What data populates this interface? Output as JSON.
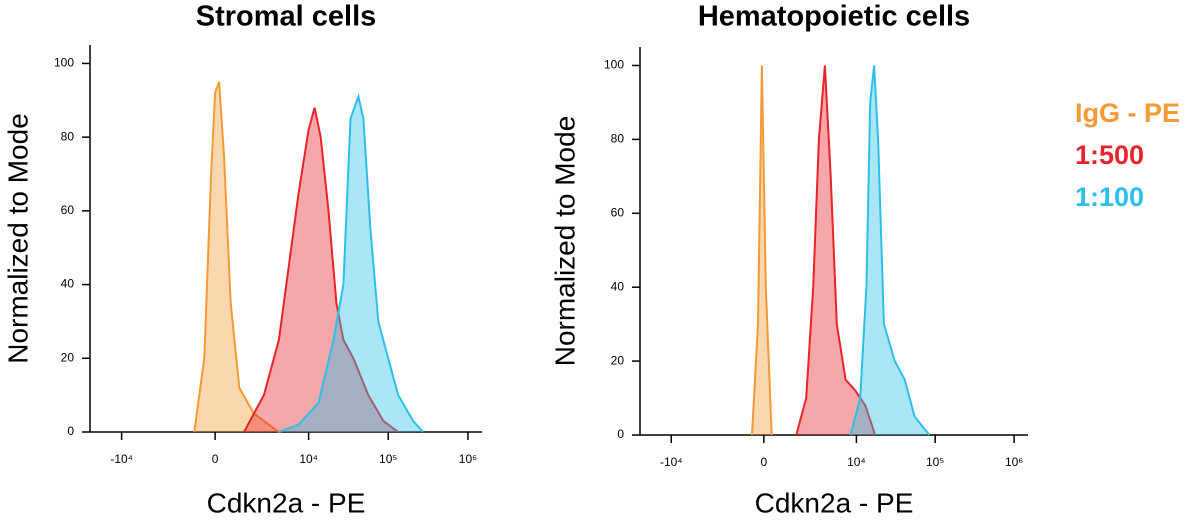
{
  "chart_data": [
    {
      "type": "area",
      "title": "Stromal cells",
      "x_label": "Cdkn2a - PE",
      "y_label": "Normalized to Mode",
      "xscale": "biexponential",
      "xlim": [
        -25000,
        1500000
      ],
      "xticks": [
        {
          "value": -10000,
          "label": "-10⁴"
        },
        0,
        {
          "value": 10000,
          "label": "10⁴"
        },
        {
          "value": 100000,
          "label": "10⁵"
        },
        {
          "value": 1000000,
          "label": "10⁶"
        }
      ],
      "ylim": [
        0,
        105
      ],
      "yticks": [
        0,
        20,
        40,
        60,
        80,
        100
      ],
      "series": [
        {
          "color": "#f39a36",
          "x": [
            -860,
            -430,
            -155,
            0,
            155,
            350,
            630,
            1020,
            1850,
            4150
          ],
          "values": [
            0,
            20,
            70,
            92,
            95,
            75,
            35,
            12,
            5,
            0
          ]
        },
        {
          "color": "#e8232a",
          "x": [
            1260,
            2600,
            4150,
            5590,
            7490,
            10000,
            11900,
            14200,
            17800,
            22400,
            27400,
            36600,
            56300,
            86700,
            133500
          ],
          "values": [
            0,
            10,
            25,
            45,
            65,
            82,
            88,
            80,
            60,
            35,
            25,
            20,
            10,
            3,
            0
          ]
        },
        {
          "color": "#2cc0e8",
          "x": [
            4150,
            7490,
            13400,
            20600,
            27400,
            33600,
            42300,
            48800,
            59700,
            75200,
            100000,
            133500,
            205000,
            274000
          ],
          "values": [
            0,
            2,
            8,
            25,
            40,
            85,
            91,
            85,
            55,
            30,
            20,
            10,
            3,
            0
          ]
        }
      ]
    },
    {
      "type": "area",
      "title": "Hematopoietic cells",
      "x_label": "Cdkn2a - PE",
      "y_label": "Normalized to Mode",
      "xscale": "biexponential",
      "xlim": [
        -25000,
        1500000
      ],
      "xticks": [
        {
          "value": -10000,
          "label": "-10⁴"
        },
        0,
        {
          "value": 10000,
          "label": "10⁴"
        },
        {
          "value": 100000,
          "label": "10⁵"
        },
        {
          "value": 1000000,
          "label": "10⁶"
        }
      ],
      "ylim": [
        0,
        105
      ],
      "yticks": [
        0,
        20,
        40,
        60,
        80,
        100
      ],
      "series": [
        {
          "name": "IgG - PE",
          "color": "#f39a36",
          "x": [
            -475,
            -233,
            -78,
            78,
            312
          ],
          "values": [
            0,
            30,
            100,
            40,
            0
          ]
        },
        {
          "name": "1:500",
          "color": "#e8232a",
          "x": [
            1476,
            2130,
            2690,
            3230,
            3890,
            4650,
            5590,
            7280,
            9720,
            13000,
            17300
          ],
          "values": [
            0,
            10,
            40,
            80,
            100,
            70,
            30,
            15,
            12,
            8,
            0
          ]
        },
        {
          "name": "1:100",
          "color": "#2cc0e8",
          "x": [
            8420,
            11200,
            13400,
            15000,
            16800,
            18900,
            22400,
            30800,
            41100,
            54800,
            84300
          ],
          "values": [
            0,
            10,
            40,
            90,
            100,
            80,
            30,
            20,
            15,
            5,
            0
          ]
        }
      ]
    }
  ]
}
